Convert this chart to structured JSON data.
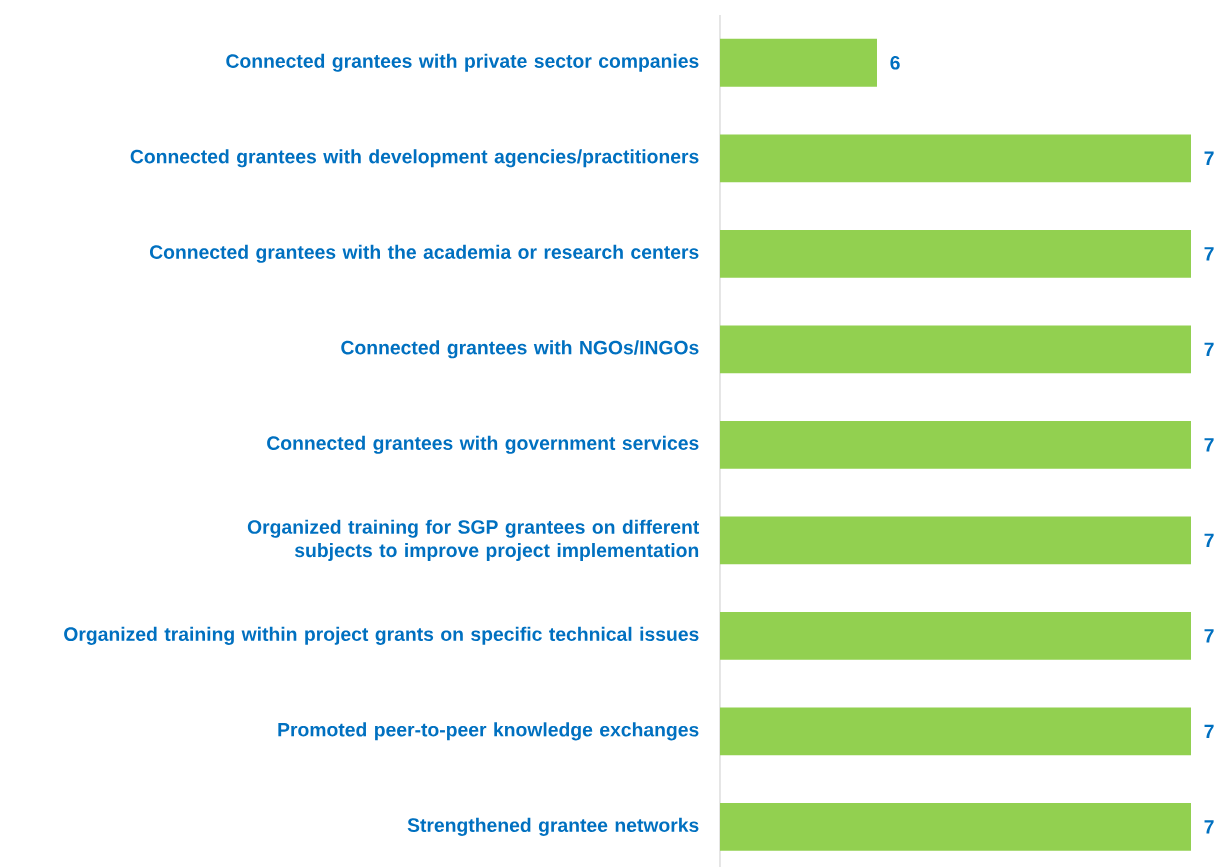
{
  "chart_data": {
    "type": "bar",
    "orientation": "horizontal",
    "categories": [
      "Connected grantees with private sector companies",
      "Connected grantees with development agencies/practitioners",
      "Connected grantees with the academia or research centers",
      "Connected grantees with NGOs/INGOs",
      "Connected grantees with government services",
      "Organized training for SGP grantees on different subjects to improve project implementation",
      "Organized training within project grants on specific technical issues",
      "Promoted peer-to-peer knowledge exchanges",
      "Strengthened grantee networks"
    ],
    "values": [
      6,
      7,
      7,
      7,
      7,
      7,
      7,
      7,
      7
    ],
    "color": "#92d050",
    "xlim": [
      5.5,
      7
    ],
    "data_labels": true
  }
}
